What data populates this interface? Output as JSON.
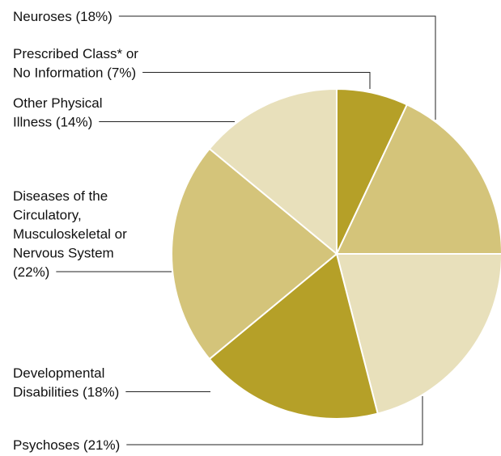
{
  "chart_data": {
    "type": "pie",
    "labels": [
      [
        "Prescribed Class* or",
        "No Information (7%)"
      ],
      [
        "Neuroses (18%)"
      ],
      [
        "Psychoses (21%)"
      ],
      [
        "Developmental",
        "Disabilities (18%)"
      ],
      [
        "Diseases of the",
        "Circulatory,",
        "Musculoskeletal or",
        "Nervous System",
        "(22%)"
      ],
      [
        "Other Physical",
        "Illness (14%)"
      ]
    ],
    "values": [
      7,
      18,
      21,
      18,
      22,
      14
    ],
    "colors": [
      "#b5a028",
      "#d4c47a",
      "#e8e0bb",
      "#b5a028",
      "#d4c47a",
      "#e8e0bb"
    ]
  }
}
